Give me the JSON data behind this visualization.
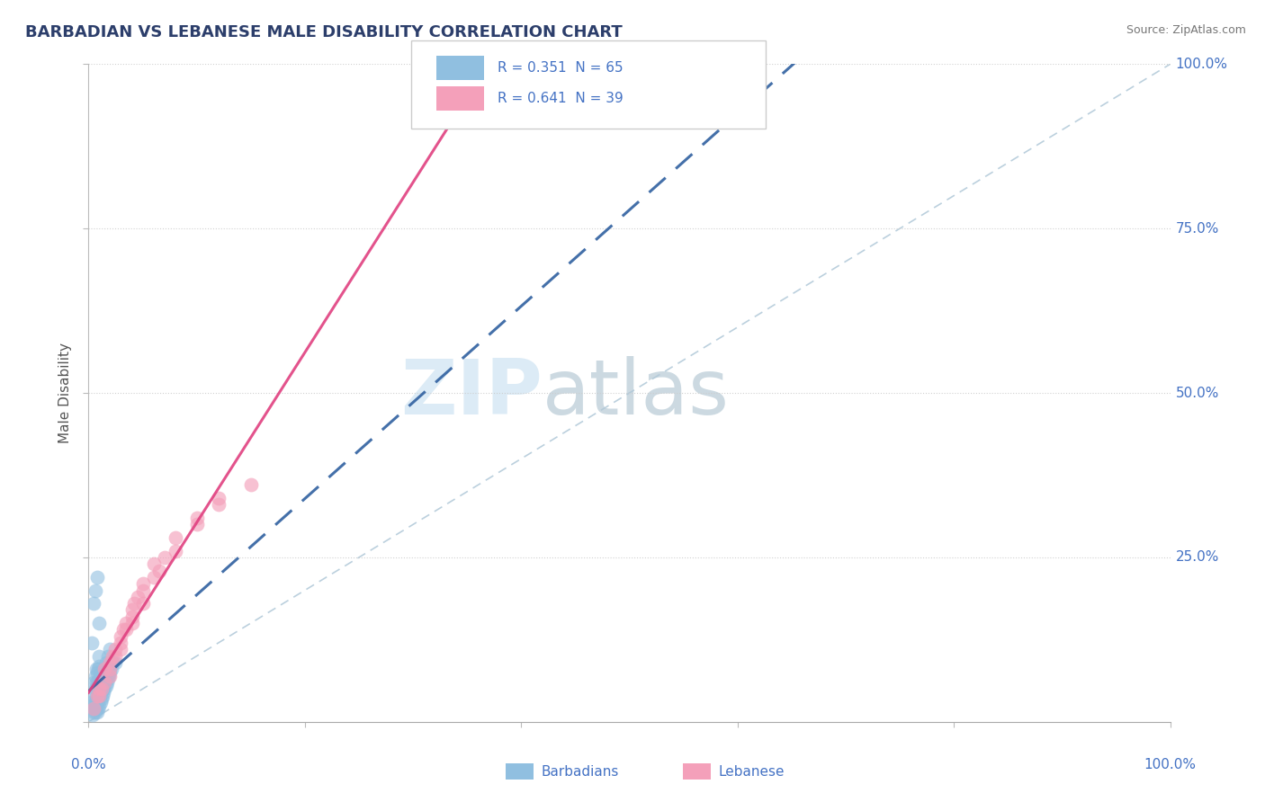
{
  "title": "BARBADIAN VS LEBANESE MALE DISABILITY CORRELATION CHART",
  "source": "Source: ZipAtlas.com",
  "ylabel": "Male Disability",
  "blue_color": "#90bfe0",
  "pink_color": "#f4a0ba",
  "blue_line_color": "#3060a0",
  "pink_line_color": "#e04080",
  "diag_color": "#b0c8d8",
  "grid_color": "#cccccc",
  "title_color": "#2c3e6b",
  "tick_color": "#4472c4",
  "legend_blue": "R = 0.351  N = 65",
  "legend_pink": "R = 0.641  N = 39",
  "blue_x": [
    0.3,
    0.4,
    0.5,
    0.5,
    0.5,
    0.6,
    0.6,
    0.6,
    0.6,
    0.7,
    0.7,
    0.7,
    0.7,
    0.8,
    0.8,
    0.8,
    0.8,
    0.9,
    0.9,
    0.9,
    0.9,
    1.0,
    1.0,
    1.0,
    1.0,
    1.0,
    1.1,
    1.1,
    1.2,
    1.2,
    1.2,
    1.3,
    1.3,
    1.4,
    1.4,
    1.5,
    1.5,
    1.6,
    1.6,
    1.7,
    1.8,
    1.8,
    1.9,
    2.0,
    2.0,
    2.1,
    2.2,
    0.4,
    0.5,
    0.6,
    0.7,
    0.8,
    0.9,
    1.0,
    1.1,
    1.3,
    1.5,
    1.7,
    2.0,
    2.5,
    1.0,
    0.6,
    0.8,
    0.3,
    0.5
  ],
  "blue_y": [
    3.0,
    2.5,
    2.0,
    4.0,
    6.0,
    1.5,
    3.0,
    5.0,
    7.0,
    2.0,
    4.0,
    6.0,
    8.0,
    1.5,
    3.5,
    5.5,
    7.5,
    2.0,
    4.0,
    6.0,
    8.0,
    2.5,
    4.5,
    6.5,
    8.5,
    10.0,
    3.0,
    5.0,
    3.5,
    5.5,
    7.5,
    4.0,
    6.0,
    4.5,
    7.0,
    5.0,
    8.0,
    5.5,
    9.0,
    6.0,
    6.5,
    10.0,
    7.0,
    7.5,
    11.0,
    8.0,
    9.0,
    1.0,
    1.5,
    2.0,
    2.5,
    3.0,
    3.5,
    4.0,
    4.5,
    5.0,
    6.0,
    7.0,
    8.0,
    9.0,
    15.0,
    20.0,
    22.0,
    12.0,
    18.0
  ],
  "pink_x": [
    0.5,
    0.8,
    1.0,
    1.5,
    2.0,
    2.5,
    3.0,
    3.5,
    4.0,
    5.0,
    6.0,
    7.0,
    8.0,
    10.0,
    12.0,
    2.0,
    3.0,
    4.0,
    5.0,
    6.0,
    1.5,
    2.5,
    3.5,
    4.5,
    1.0,
    2.0,
    3.0,
    4.0,
    5.0,
    6.5,
    8.0,
    10.0,
    12.0,
    15.0,
    35.0,
    1.2,
    2.2,
    3.2,
    4.2
  ],
  "pink_y": [
    2.0,
    4.0,
    5.0,
    8.0,
    9.0,
    10.0,
    11.0,
    14.0,
    15.0,
    18.0,
    22.0,
    25.0,
    28.0,
    30.0,
    33.0,
    7.0,
    12.0,
    16.0,
    20.0,
    24.0,
    6.0,
    11.0,
    15.0,
    19.0,
    4.0,
    8.0,
    13.0,
    17.0,
    21.0,
    23.0,
    26.0,
    31.0,
    34.0,
    36.0,
    95.0,
    5.0,
    10.0,
    14.0,
    18.0
  ]
}
